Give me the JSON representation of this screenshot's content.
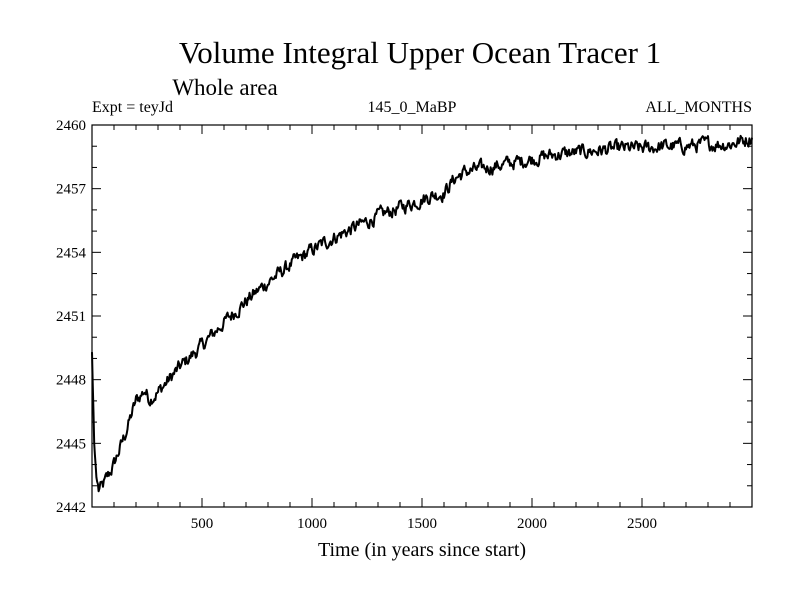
{
  "chart_data": {
    "type": "line",
    "title": "Volume Integral Upper Ocean Tracer 1",
    "subtitle": "Whole area",
    "left_label": "Expt = teyJd",
    "center_label": "145_0_MaBP",
    "right_label": "ALL_MONTHS",
    "xlabel": "Time (in years since start)",
    "ylabel": "",
    "xlim": [
      0,
      3000
    ],
    "ylim": [
      2442,
      2460
    ],
    "x_ticks": [
      500,
      1000,
      1500,
      2000,
      2500
    ],
    "x_tick_labels": [
      "500",
      "1000",
      "1500",
      "2000",
      "2500"
    ],
    "y_ticks": [
      2442,
      2445,
      2448,
      2451,
      2454,
      2457,
      2460
    ],
    "y_tick_labels": [
      "2442",
      "2445",
      "2448",
      "2451",
      "2454",
      "2457",
      "2460"
    ],
    "grid": false,
    "series": [
      {
        "name": "Tracer 1",
        "color": "#000000",
        "x": [
          0,
          10,
          20,
          30,
          50,
          80,
          100,
          150,
          200,
          240,
          260,
          300,
          350,
          400,
          500,
          600,
          700,
          800,
          900,
          1000,
          1100,
          1200,
          1300,
          1400,
          1500,
          1550,
          1600,
          1650,
          1700,
          1800,
          1900,
          2000,
          2100,
          2200,
          2300,
          2400,
          2500,
          2600,
          2700,
          2800,
          2900,
          3000
        ],
        "values": [
          2449.3,
          2445.0,
          2443.4,
          2442.8,
          2443.0,
          2443.6,
          2444.0,
          2445.4,
          2447.0,
          2447.5,
          2447.1,
          2447.4,
          2448.0,
          2448.6,
          2449.6,
          2450.7,
          2451.7,
          2452.6,
          2453.4,
          2454.1,
          2454.7,
          2455.2,
          2455.7,
          2456.1,
          2456.5,
          2456.7,
          2456.8,
          2457.5,
          2457.8,
          2458.0,
          2458.2,
          2458.4,
          2458.6,
          2458.7,
          2458.8,
          2458.9,
          2458.9,
          2459.0,
          2459.0,
          2459.1,
          2459.1,
          2459.4
        ]
      }
    ]
  }
}
